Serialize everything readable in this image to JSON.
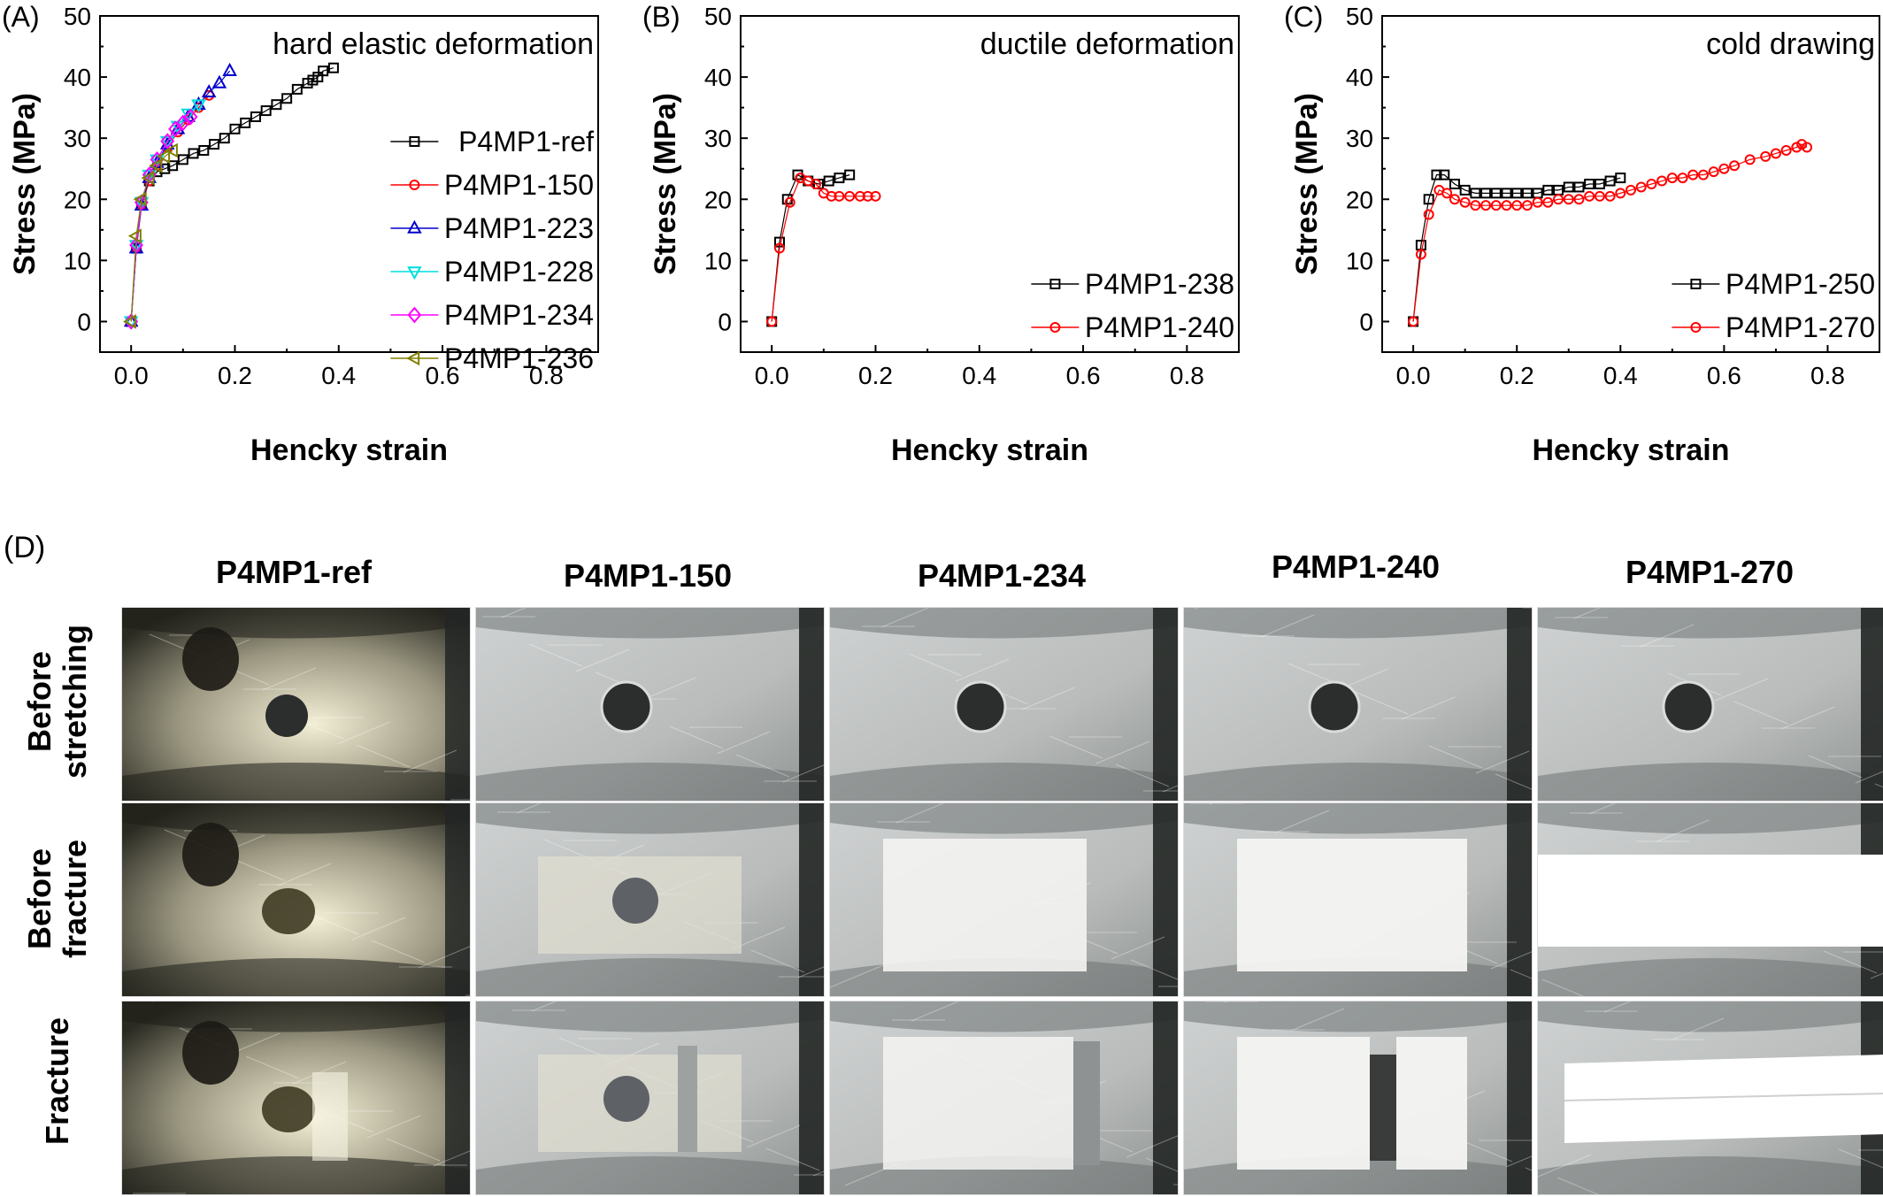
{
  "charts": {
    "chart_data": [
      {
        "type": "scatter",
        "panel": "(A)",
        "title": "hard elastic deformation",
        "xlabel": "Hencky strain",
        "ylabel": "Stress (MPa)",
        "xlim": [
          -0.06,
          0.9
        ],
        "ylim": [
          -5,
          50
        ],
        "xticks": [
          "0.0",
          "0.2",
          "0.4",
          "0.6",
          "0.8"
        ],
        "yticks": [
          "0",
          "10",
          "20",
          "30",
          "40",
          "50"
        ],
        "legend_position": "right",
        "series": [
          {
            "name": "P4MP1-ref",
            "marker": "square",
            "color": "#000000",
            "x": [
              0.0,
              0.01,
              0.02,
              0.035,
              0.05,
              0.065,
              0.08,
              0.1,
              0.12,
              0.14,
              0.16,
              0.18,
              0.2,
              0.22,
              0.24,
              0.26,
              0.28,
              0.3,
              0.32,
              0.34,
              0.35,
              0.36,
              0.37,
              0.39
            ],
            "y": [
              0.0,
              12.0,
              19.5,
              23.0,
              24.5,
              25.0,
              25.5,
              26.5,
              27.5,
              28.0,
              29.0,
              30.0,
              31.5,
              32.5,
              33.5,
              34.5,
              35.5,
              36.5,
              38.0,
              39.0,
              39.5,
              40.0,
              41.0,
              41.5
            ]
          },
          {
            "name": "P4MP1-150",
            "marker": "circle",
            "color": "#ff0000",
            "x": [
              0.0,
              0.01,
              0.02,
              0.035,
              0.05,
              0.07,
              0.09,
              0.11,
              0.13,
              0.15
            ],
            "y": [
              0.0,
              12.0,
              19.0,
              23.0,
              25.5,
              28.5,
              31.0,
              33.0,
              35.0,
              37.0
            ]
          },
          {
            "name": "P4MP1-223",
            "marker": "triangle-up",
            "color": "#0000cc",
            "x": [
              0.0,
              0.01,
              0.02,
              0.035,
              0.05,
              0.07,
              0.09,
              0.11,
              0.13,
              0.15,
              0.17,
              0.19
            ],
            "y": [
              0.0,
              12.0,
              19.0,
              23.5,
              26.0,
              29.0,
              31.5,
              33.5,
              35.5,
              37.5,
              39.0,
              41.0
            ]
          },
          {
            "name": "P4MP1-228",
            "marker": "triangle-down",
            "color": "#00dddd",
            "x": [
              0.0,
              0.01,
              0.02,
              0.035,
              0.05,
              0.07,
              0.09,
              0.11,
              0.13
            ],
            "y": [
              0.0,
              12.5,
              19.5,
              24.0,
              26.5,
              29.5,
              32.0,
              34.0,
              35.5
            ]
          },
          {
            "name": "P4MP1-234",
            "marker": "diamond",
            "color": "#ff00ff",
            "x": [
              0.0,
              0.01,
              0.02,
              0.035,
              0.05,
              0.07,
              0.085,
              0.1,
              0.115
            ],
            "y": [
              0.0,
              12.5,
              19.5,
              24.0,
              26.5,
              29.5,
              31.5,
              32.5,
              33.5
            ]
          },
          {
            "name": "P4MP1-236",
            "marker": "triangle-left",
            "color": "#808000",
            "x": [
              0.0,
              0.01,
              0.02,
              0.035,
              0.05,
              0.065,
              0.08
            ],
            "y": [
              0.0,
              14.0,
              20.0,
              23.5,
              25.5,
              27.0,
              28.0
            ]
          }
        ]
      },
      {
        "type": "scatter",
        "panel": "(B)",
        "title": "ductile deformation",
        "xlabel": "Hencky strain",
        "ylabel": "Stress (MPa)",
        "xlim": [
          -0.06,
          0.9
        ],
        "ylim": [
          -5,
          50
        ],
        "xticks": [
          "0.0",
          "0.2",
          "0.4",
          "0.6",
          "0.8"
        ],
        "yticks": [
          "0",
          "10",
          "20",
          "30",
          "40",
          "50"
        ],
        "legend_position": "bottom-right",
        "series": [
          {
            "name": "P4MP1-238",
            "marker": "square",
            "color": "#000000",
            "x": [
              0.0,
              0.015,
              0.03,
              0.05,
              0.07,
              0.09,
              0.11,
              0.13,
              0.15
            ],
            "y": [
              0.0,
              13.0,
              20.0,
              24.0,
              23.0,
              22.5,
              23.0,
              23.5,
              24.0
            ]
          },
          {
            "name": "P4MP1-240",
            "marker": "circle",
            "color": "#ff0000",
            "x": [
              0.0,
              0.015,
              0.035,
              0.055,
              0.07,
              0.085,
              0.1,
              0.115,
              0.13,
              0.15,
              0.17,
              0.185,
              0.2
            ],
            "y": [
              0.0,
              12.0,
              19.5,
              23.5,
              23.0,
              22.5,
              21.0,
              20.5,
              20.5,
              20.5,
              20.5,
              20.5,
              20.5
            ]
          }
        ]
      },
      {
        "type": "scatter",
        "panel": "(C)",
        "title": "cold drawing",
        "xlabel": "Hencky strain",
        "ylabel": "Stress (MPa)",
        "xlim": [
          -0.06,
          0.9
        ],
        "ylim": [
          -5,
          50
        ],
        "xticks": [
          "0.0",
          "0.2",
          "0.4",
          "0.6",
          "0.8"
        ],
        "yticks": [
          "0",
          "10",
          "20",
          "30",
          "40",
          "50"
        ],
        "legend_position": "bottom-right",
        "series": [
          {
            "name": "P4MP1-250",
            "marker": "square",
            "color": "#000000",
            "x": [
              0.0,
              0.015,
              0.03,
              0.045,
              0.06,
              0.08,
              0.1,
              0.12,
              0.14,
              0.16,
              0.18,
              0.2,
              0.22,
              0.24,
              0.26,
              0.28,
              0.3,
              0.32,
              0.34,
              0.36,
              0.38,
              0.4
            ],
            "y": [
              0.0,
              12.5,
              20.0,
              24.0,
              24.0,
              22.5,
              21.5,
              21.0,
              21.0,
              21.0,
              21.0,
              21.0,
              21.0,
              21.0,
              21.5,
              21.5,
              22.0,
              22.0,
              22.5,
              22.5,
              23.0,
              23.5
            ]
          },
          {
            "name": "P4MP1-270",
            "marker": "circle",
            "color": "#ff0000",
            "x": [
              0.0,
              0.015,
              0.03,
              0.05,
              0.065,
              0.08,
              0.1,
              0.12,
              0.14,
              0.16,
              0.18,
              0.2,
              0.22,
              0.24,
              0.26,
              0.28,
              0.3,
              0.32,
              0.34,
              0.36,
              0.38,
              0.4,
              0.42,
              0.44,
              0.46,
              0.48,
              0.5,
              0.52,
              0.54,
              0.56,
              0.58,
              0.6,
              0.62,
              0.65,
              0.68,
              0.7,
              0.72,
              0.74,
              0.75,
              0.76
            ],
            "y": [
              0.0,
              11.0,
              17.5,
              21.5,
              21.0,
              20.0,
              19.5,
              19.0,
              19.0,
              19.0,
              19.0,
              19.0,
              19.0,
              19.5,
              19.5,
              20.0,
              20.0,
              20.0,
              20.5,
              20.5,
              20.5,
              21.0,
              21.5,
              22.0,
              22.5,
              23.0,
              23.5,
              23.5,
              24.0,
              24.0,
              24.5,
              25.0,
              25.5,
              26.5,
              27.0,
              27.5,
              28.0,
              28.5,
              29.0,
              28.5
            ]
          }
        ]
      }
    ]
  },
  "photos": {
    "panel": "(D)",
    "columns": [
      "P4MP1-ref",
      "P4MP1-150",
      "P4MP1-234",
      "P4MP1-240",
      "P4MP1-270"
    ],
    "rows": [
      "Before\nstretching",
      "Before\nfracture",
      "Fracture"
    ],
    "colors": {
      "metal_light": "#cfd2d2",
      "metal_dark": "#6e7272",
      "clamp_dark": "#222624",
      "hole": "#2b2e2d",
      "whitened": "#f4f4f2",
      "ref_bg_dark": "#2a2a22",
      "ref_glare": "#f3efd6"
    }
  }
}
